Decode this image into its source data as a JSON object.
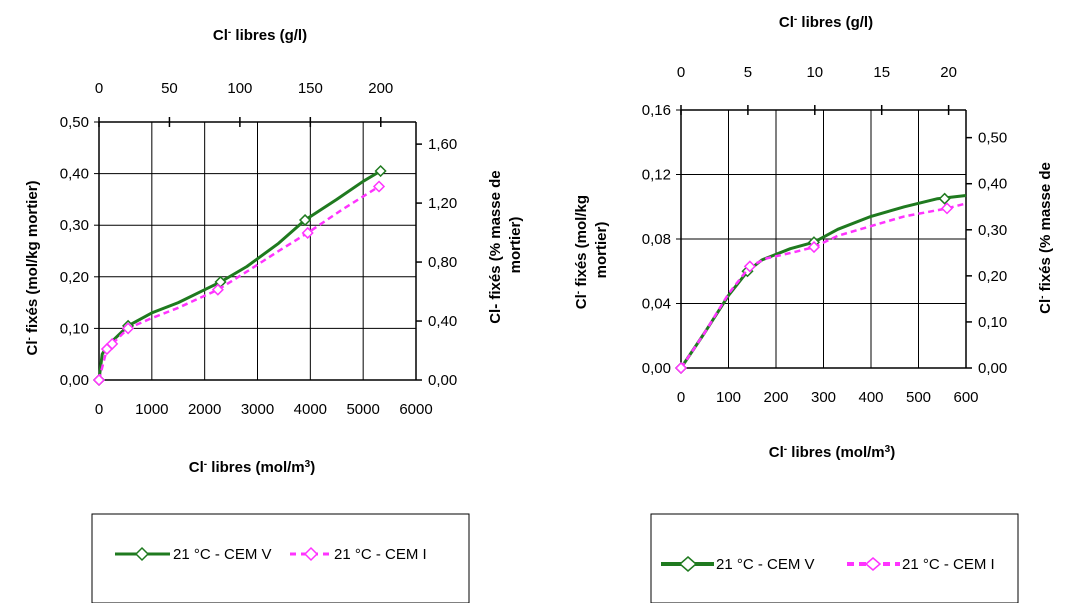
{
  "chart_data": [
    {
      "type": "line",
      "x_bottom_label": {
        "base": "Cl",
        "sup1": "-",
        "rest": " libres (mol/m",
        "sup2": "3",
        "end": ")"
      },
      "x_top_label": {
        "base": "Cl",
        "sup1": "-",
        "rest": " libres (g/l)"
      },
      "y_left_label": {
        "base": "Cl",
        "sup1": "-",
        "rest": " fixés (mol/kg mortier)"
      },
      "y_right_label": {
        "line1": "Cl- fixés (% masse de",
        "line2": "mortier)"
      },
      "xlim": [
        0,
        6000
      ],
      "ylim": [
        0,
        0.5
      ],
      "x_ticks": [
        "0",
        "1000",
        "2000",
        "3000",
        "4000",
        "5000",
        "6000"
      ],
      "x_ticks_values": [
        0,
        1000,
        2000,
        3000,
        4000,
        5000,
        6000
      ],
      "y_ticks": [
        "0,00",
        "0,10",
        "0,20",
        "0,30",
        "0,40",
        "0,50"
      ],
      "y_ticks_values": [
        0,
        0.1,
        0.2,
        0.3,
        0.4,
        0.5
      ],
      "top_ticks": [
        "0",
        "50",
        "100",
        "150",
        "200"
      ],
      "top_ticks_values": [
        0,
        50,
        100,
        150,
        200
      ],
      "top_lim": [
        0,
        225
      ],
      "right_ticks": [
        "0,00",
        "0,40",
        "0,80",
        "1,20",
        "1,60"
      ],
      "right_ticks_values": [
        0,
        0.4,
        0.8,
        1.2,
        1.6
      ],
      "right_lim": [
        0,
        1.75
      ],
      "series": [
        {
          "name": "21 °C - CEM V",
          "color": "#1f7a1f",
          "x": [
            0,
            60,
            150,
            300,
            550,
            1000,
            1500,
            2000,
            2300,
            2800,
            3400,
            3900,
            4500,
            5000,
            5330
          ],
          "y": [
            0,
            0.05,
            0.065,
            0.08,
            0.105,
            0.13,
            0.15,
            0.175,
            0.19,
            0.22,
            0.265,
            0.31,
            0.35,
            0.385,
            0.405
          ],
          "markers": [
            [
              0,
              0
            ],
            [
              550,
              0.105
            ],
            [
              2300,
              0.19
            ],
            [
              3900,
              0.31
            ],
            [
              5330,
              0.405
            ]
          ]
        },
        {
          "name": "21 °C - CEM I",
          "color": "#ff33ff",
          "x": [
            0,
            150,
            250,
            550,
            1000,
            1500,
            2250,
            2800,
            3400,
            3950,
            4600,
            5300
          ],
          "y": [
            0,
            0.06,
            0.07,
            0.1,
            0.12,
            0.14,
            0.175,
            0.21,
            0.25,
            0.285,
            0.33,
            0.375
          ],
          "markers": [
            [
              0,
              0
            ],
            [
              150,
              0.06
            ],
            [
              250,
              0.07
            ],
            [
              550,
              0.1
            ],
            [
              2250,
              0.175
            ],
            [
              3950,
              0.285
            ],
            [
              5300,
              0.375
            ]
          ]
        }
      ],
      "legend": {
        "position": "bottom"
      }
    },
    {
      "type": "line",
      "x_bottom_label": {
        "base": "Cl",
        "sup1": "-",
        "rest": " libres (mol/m",
        "sup2": "3",
        "end": ")"
      },
      "x_top_label": {
        "base": "Cl",
        "sup1": "-",
        "rest": " libres (g/l)"
      },
      "y_left_label": {
        "line1_base": "Cl",
        "line1_sup": "-",
        "line1_rest": " fixés (mol/kg",
        "line2": "mortier)"
      },
      "y_right_label": {
        "base": "Cl",
        "sup1": "-",
        "rest": " fixés (% masse de"
      },
      "xlim": [
        0,
        600
      ],
      "ylim": [
        0,
        0.16
      ],
      "x_ticks": [
        "0",
        "100",
        "200",
        "300",
        "400",
        "500",
        "600"
      ],
      "x_ticks_values": [
        0,
        100,
        200,
        300,
        400,
        500,
        600
      ],
      "y_ticks": [
        "0,00",
        "0,04",
        "0,08",
        "0,12",
        "0,16"
      ],
      "y_ticks_values": [
        0,
        0.04,
        0.08,
        0.12,
        0.16
      ],
      "top_ticks": [
        "0",
        "5",
        "10",
        "15",
        "20"
      ],
      "top_ticks_values": [
        0,
        5,
        10,
        15,
        20
      ],
      "top_lim": [
        0,
        21.3
      ],
      "right_ticks": [
        "0,00",
        "0,10",
        "0,20",
        "0,30",
        "0,40",
        "0,50"
      ],
      "right_ticks_values": [
        0,
        0.1,
        0.2,
        0.3,
        0.4,
        0.5
      ],
      "right_lim": [
        0,
        0.56
      ],
      "series": [
        {
          "name": "21 °C - CEM V",
          "color": "#1f7a1f",
          "x": [
            0,
            50,
            100,
            140,
            170,
            230,
            280,
            330,
            400,
            470,
            540,
            600
          ],
          "y": [
            0,
            0.022,
            0.045,
            0.06,
            0.067,
            0.074,
            0.078,
            0.086,
            0.094,
            0.1,
            0.105,
            0.107
          ],
          "markers": [
            [
              0,
              0
            ],
            [
              140,
              0.06
            ],
            [
              280,
              0.078
            ],
            [
              555,
              0.105
            ]
          ]
        },
        {
          "name": "21 °C - CEM I",
          "color": "#ff33ff",
          "x": [
            0,
            50,
            100,
            145,
            180,
            240,
            280,
            330,
            400,
            470,
            560,
            600
          ],
          "y": [
            0,
            0.022,
            0.046,
            0.063,
            0.068,
            0.072,
            0.075,
            0.082,
            0.088,
            0.094,
            0.099,
            0.102
          ],
          "markers": [
            [
              0,
              0
            ],
            [
              145,
              0.063
            ],
            [
              280,
              0.075
            ],
            [
              560,
              0.099
            ]
          ]
        }
      ],
      "legend": {
        "position": "bottom"
      }
    }
  ]
}
